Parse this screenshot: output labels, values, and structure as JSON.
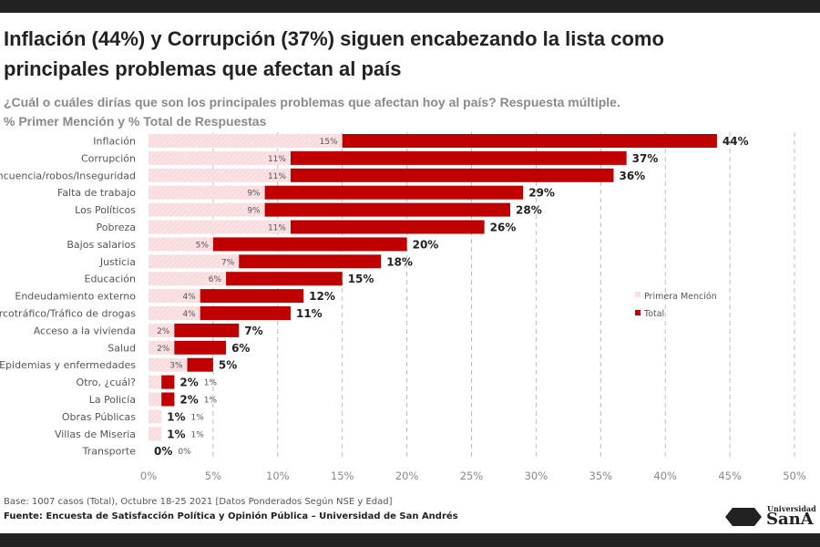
{
  "title_line1": "Inflación (44%) y Corrupción (37%) siguen encabezando la lista como",
  "title_line2": "principales problemas que afectan al país",
  "subtitle_line1": "¿Cuál o cuáles dirías que son los principales problemas que afectan hoy al país? Respuesta múltiple.",
  "subtitle_line2": "% Primer Mención y % Total de Respuestas",
  "note": "Base: 1007 casos (Total), Octubre 18-25 2021 [Datos Ponderados Según NSE y Edad]",
  "source": "Fuente: Encuesta de Satisfacción Política y Opinión Pública – Universidad de San Andrés",
  "logo": {
    "small": "Universidad",
    "big": "SanA"
  },
  "colors": {
    "primera": "#f9e1e4",
    "total": "#c00000"
  },
  "chart_data": {
    "type": "bar",
    "orientation": "horizontal",
    "categories": [
      "Inflación",
      "Corrupción",
      "Delincuencia/robos/Inseguridad",
      "Falta de trabajo",
      "Los Políticos",
      "Pobreza",
      "Bajos salarios",
      "Justicia",
      "Educación",
      "Endeudamiento externo",
      "Narcotráfico/Tráfico de drogas",
      "Acceso a la vivienda",
      "Salud",
      "Epidemias y enfermedades",
      "Otro, ¿cuál?",
      "La Policía",
      "Obras Públicas",
      "Villas de Miseria",
      "Transporte"
    ],
    "series": [
      {
        "name": "Primera Mención",
        "values": [
          15,
          11,
          11,
          9,
          9,
          11,
          5,
          7,
          6,
          4,
          4,
          2,
          2,
          3,
          1,
          1,
          1,
          1,
          0
        ]
      },
      {
        "name": "Total",
        "values": [
          44,
          37,
          36,
          29,
          28,
          26,
          20,
          18,
          15,
          12,
          11,
          7,
          6,
          5,
          2,
          2,
          1,
          1,
          0
        ]
      }
    ],
    "xlim": [
      0,
      50
    ],
    "xticks": [
      "0%",
      "5%",
      "10%",
      "15%",
      "20%",
      "25%",
      "30%",
      "35%",
      "40%",
      "45%",
      "50%"
    ],
    "grid": true,
    "legend": "right"
  }
}
